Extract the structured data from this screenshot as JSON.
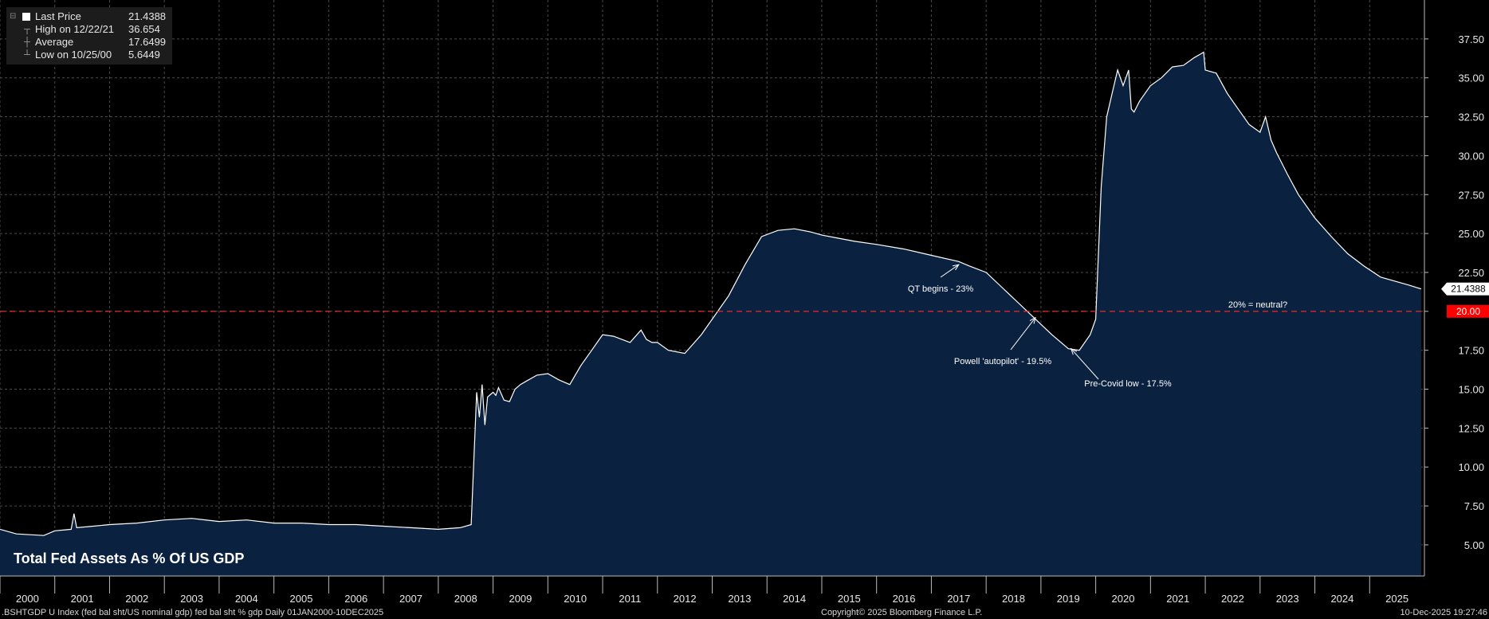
{
  "legend": {
    "items": [
      {
        "label": "Last Price",
        "value": "21.4388",
        "symbol": "square-icon"
      },
      {
        "label": "High on 12/22/21",
        "value": "36.654",
        "symbol": "high-marker-icon"
      },
      {
        "label": "Average",
        "value": "17.6499",
        "symbol": "average-marker-icon"
      },
      {
        "label": "Low on 10/25/00",
        "value": "5.6449",
        "symbol": "low-marker-icon"
      }
    ]
  },
  "footer": {
    "left": ".BSHTGDP U Index (fed bal sht/US nominal gdp) fed bal sht % gdp Daily 01JAN2000-10DEC2025",
    "center": "Copyright© 2025 Bloomberg Finance L.P.",
    "right": "10-Dec-2025 19:27:46"
  },
  "colors": {
    "background": "#000000",
    "area_fill": "#0a2140",
    "line": "#ffffff",
    "neutral_line": "#ff2a2a",
    "neutral_badge": "#ff0000",
    "last_badge": "#ffffff"
  },
  "chart_data": {
    "type": "area",
    "title": "Total Fed Assets As % Of US GDP",
    "xlabel": "",
    "ylabel": "",
    "xlim": [
      2000.0,
      2026.0
    ],
    "ylim": [
      3.0,
      40.0
    ],
    "grid": true,
    "legend_position": "top-left",
    "x_ticks": [
      "2000",
      "2001",
      "2002",
      "2003",
      "2004",
      "2005",
      "2006",
      "2007",
      "2008",
      "2009",
      "2010",
      "2011",
      "2012",
      "2013",
      "2014",
      "2015",
      "2016",
      "2017",
      "2018",
      "2019",
      "2020",
      "2021",
      "2022",
      "2023",
      "2024",
      "2025"
    ],
    "y_ticks": [
      "5.00",
      "7.50",
      "10.00",
      "12.50",
      "15.00",
      "17.50",
      "20.00",
      "22.50",
      "25.00",
      "27.50",
      "30.00",
      "32.50",
      "35.00",
      "37.50"
    ],
    "series": [
      {
        "name": "Last Price",
        "x": [
          2000.0,
          2000.3,
          2000.8,
          2001.0,
          2001.3,
          2001.35,
          2001.4,
          2001.7,
          2002.0,
          2002.5,
          2003.0,
          2003.5,
          2004.0,
          2004.5,
          2005.0,
          2005.5,
          2006.0,
          2006.5,
          2007.0,
          2007.5,
          2008.0,
          2008.4,
          2008.6,
          2008.7,
          2008.75,
          2008.8,
          2008.85,
          2008.9,
          2009.0,
          2009.05,
          2009.1,
          2009.2,
          2009.3,
          2009.4,
          2009.5,
          2009.6,
          2009.8,
          2010.0,
          2010.2,
          2010.4,
          2010.6,
          2010.8,
          2011.0,
          2011.2,
          2011.5,
          2011.7,
          2011.8,
          2011.9,
          2012.0,
          2012.2,
          2012.5,
          2012.8,
          2013.0,
          2013.3,
          2013.6,
          2013.9,
          2014.2,
          2014.5,
          2014.8,
          2015.0,
          2015.3,
          2015.6,
          2016.0,
          2016.5,
          2017.0,
          2017.5,
          2017.7,
          2018.0,
          2018.3,
          2018.6,
          2018.9,
          2019.2,
          2019.5,
          2019.7,
          2019.9,
          2020.0,
          2020.1,
          2020.2,
          2020.3,
          2020.4,
          2020.5,
          2020.6,
          2020.65,
          2020.7,
          2020.8,
          2021.0,
          2021.2,
          2021.4,
          2021.6,
          2021.8,
          2021.9,
          2021.97,
          2022.0,
          2022.2,
          2022.4,
          2022.6,
          2022.8,
          2023.0,
          2023.1,
          2023.2,
          2023.3,
          2023.5,
          2023.7,
          2024.0,
          2024.3,
          2024.6,
          2024.9,
          2025.2,
          2025.5,
          2025.7,
          2025.94
        ],
        "y": [
          6.0,
          5.7,
          5.6,
          5.9,
          6.0,
          7.0,
          6.1,
          6.2,
          6.3,
          6.4,
          6.6,
          6.7,
          6.5,
          6.6,
          6.4,
          6.4,
          6.3,
          6.3,
          6.2,
          6.1,
          6.0,
          6.1,
          6.3,
          14.8,
          13.2,
          15.3,
          12.7,
          14.5,
          14.8,
          14.6,
          15.1,
          14.3,
          14.2,
          15.0,
          15.3,
          15.5,
          15.9,
          16.0,
          15.6,
          15.3,
          16.5,
          17.5,
          18.5,
          18.4,
          18.0,
          18.8,
          18.2,
          18.0,
          18.0,
          17.5,
          17.3,
          18.5,
          19.5,
          21.0,
          23.0,
          24.8,
          25.2,
          25.3,
          25.1,
          24.9,
          24.7,
          24.5,
          24.3,
          24.0,
          23.6,
          23.2,
          22.9,
          22.5,
          21.5,
          20.5,
          19.5,
          18.5,
          17.6,
          17.5,
          18.5,
          19.5,
          28.0,
          32.5,
          34.0,
          35.5,
          34.5,
          35.5,
          33.0,
          32.8,
          33.5,
          34.5,
          35.0,
          35.7,
          35.8,
          36.3,
          36.5,
          36.65,
          35.5,
          35.3,
          34.0,
          33.0,
          32.0,
          31.5,
          32.5,
          31.0,
          30.2,
          28.8,
          27.5,
          26.0,
          24.8,
          23.7,
          22.9,
          22.2,
          21.9,
          21.7,
          21.4388
        ]
      }
    ],
    "reference_lines": [
      {
        "y": 20.0,
        "style": "dashed",
        "label": "20% = neutral?",
        "badge": "20.00"
      }
    ],
    "last_value_badge": "21.4388",
    "annotations": [
      {
        "text": "QT begins - 23%",
        "x": 2017.5,
        "y": 23.0
      },
      {
        "text": "Powell 'autopilot' - 19.5%",
        "x": 2018.9,
        "y": 19.6
      },
      {
        "text": "Pre-Covid low - 17.5%",
        "x": 2019.55,
        "y": 17.6
      }
    ]
  }
}
